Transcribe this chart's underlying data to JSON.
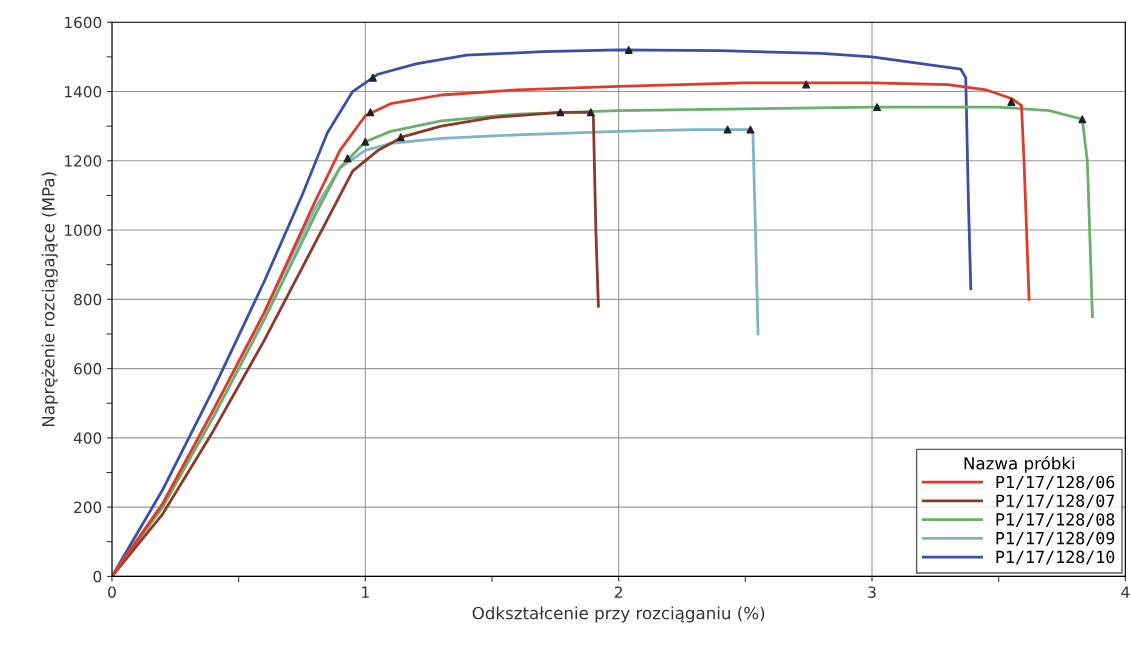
{
  "chart_data": {
    "type": "line",
    "xlabel": "Odkształcenie przy rozciąganiu (%)",
    "ylabel": "Naprężenie rozciągające (MPa)",
    "legend_title": "Nazwa próbki",
    "legend": "bottom right",
    "grid": true,
    "xlim": [
      0,
      4
    ],
    "ylim": [
      0,
      1600
    ],
    "xticks": [
      0,
      {
        "value": 0.5,
        "label": null
      },
      1,
      {
        "value": 1.5,
        "label": null
      },
      2,
      {
        "value": 2.5,
        "label": null
      },
      3,
      {
        "value": 3.5,
        "label": null
      },
      4
    ],
    "yticks": [
      0,
      {
        "value": 100,
        "label": null
      },
      200,
      {
        "value": 300,
        "label": null
      },
      400,
      {
        "value": 500,
        "label": null
      },
      600,
      {
        "value": 700,
        "label": null
      },
      800,
      {
        "value": 900,
        "label": null
      },
      1000,
      {
        "value": 1100,
        "label": null
      },
      1200,
      {
        "value": 1300,
        "label": null
      },
      1400,
      {
        "value": 1500,
        "label": null
      },
      1600
    ],
    "series": [
      {
        "name": "P1/17/128/06",
        "color": "#e03a2a",
        "x": [
          0,
          0.2,
          0.4,
          0.6,
          0.8,
          0.9,
          1.0,
          1.1,
          1.3,
          1.6,
          2.0,
          2.5,
          3.0,
          3.3,
          3.45,
          3.55,
          3.59,
          3.6,
          3.61,
          3.62
        ],
        "values": [
          0,
          210,
          480,
          760,
          1080,
          1230,
          1330,
          1365,
          1390,
          1405,
          1415,
          1425,
          1425,
          1420,
          1405,
          1380,
          1360,
          1200,
          1000,
          800
        ]
      },
      {
        "name": "P1/17/128/07",
        "color": "#8b3a2a",
        "x": [
          0,
          0.2,
          0.4,
          0.6,
          0.8,
          0.95,
          1.05,
          1.15,
          1.3,
          1.5,
          1.77,
          1.89,
          1.9,
          1.91,
          1.92
        ],
        "values": [
          0,
          180,
          420,
          680,
          960,
          1170,
          1230,
          1270,
          1300,
          1325,
          1340,
          1340,
          1330,
          1000,
          780
        ]
      },
      {
        "name": "P1/17/128/08",
        "color": "#6ab06a",
        "x": [
          0,
          0.2,
          0.4,
          0.6,
          0.8,
          0.9,
          1.0,
          1.1,
          1.3,
          1.6,
          2.0,
          2.5,
          3.0,
          3.5,
          3.7,
          3.83,
          3.85,
          3.86,
          3.87
        ],
        "values": [
          0,
          200,
          460,
          740,
          1040,
          1180,
          1255,
          1285,
          1315,
          1335,
          1345,
          1350,
          1355,
          1355,
          1345,
          1320,
          1200,
          980,
          750
        ]
      },
      {
        "name": "P1/17/128/09",
        "color": "#7fb3c8",
        "x": [
          0,
          0.2,
          0.4,
          0.6,
          0.8,
          0.9,
          1.0,
          1.1,
          1.3,
          1.6,
          2.0,
          2.3,
          2.52,
          2.53,
          2.54,
          2.55
        ],
        "values": [
          0,
          210,
          480,
          760,
          1060,
          1180,
          1230,
          1250,
          1265,
          1275,
          1285,
          1290,
          1290,
          1280,
          1000,
          700
        ]
      },
      {
        "name": "P1/17/128/10",
        "color": "#3b4fa8",
        "x": [
          0,
          0.2,
          0.4,
          0.6,
          0.75,
          0.85,
          0.95,
          1.05,
          1.2,
          1.4,
          1.7,
          2.0,
          2.4,
          2.8,
          3.0,
          3.2,
          3.35,
          3.37,
          3.38,
          3.39
        ],
        "values": [
          0,
          250,
          540,
          850,
          1100,
          1280,
          1400,
          1450,
          1480,
          1505,
          1515,
          1520,
          1518,
          1510,
          1500,
          1480,
          1465,
          1440,
          1100,
          830
        ]
      },
      {
        "type": "scatter",
        "marker": "triangle",
        "color": "#222222",
        "x": [
          1.03,
          2.04,
          1.02,
          2.74,
          3.55,
          1.14,
          1.77,
          1.89,
          1.0,
          3.02,
          3.83,
          0.93,
          2.43,
          2.52
        ],
        "values": [
          1440,
          1520,
          1340,
          1420,
          1370,
          1268,
          1340,
          1340,
          1255,
          1355,
          1320,
          1207,
          1290,
          1290
        ]
      }
    ]
  }
}
